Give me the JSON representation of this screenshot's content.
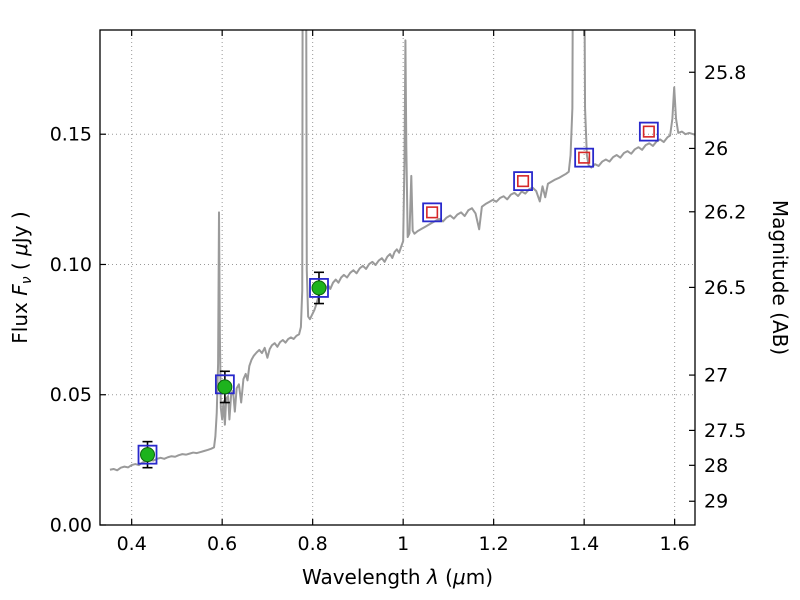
{
  "chart_data": {
    "type": "line+scatter",
    "description": "Galaxy spectral energy distribution: model spectrum (gray line), observed photometry (green circles with error bars) and model photometry (open squares)",
    "xlabel": {
      "prefix": "Wavelength",
      "symbol": "λ",
      "unit": "(μm)"
    },
    "ylabel_left": {
      "prefix": "Flux",
      "symbol": "F",
      "subscript": "ν",
      "unit": "( μJy )"
    },
    "ylabel_right": "Magnitude (AB)",
    "xlim": [
      0.33,
      1.645
    ],
    "ylim_flux": [
      0.0,
      0.19
    ],
    "xticks": [
      0.4,
      0.6,
      0.8,
      1.0,
      1.2,
      1.4,
      1.6
    ],
    "xtick_labels": [
      "0.4",
      "0.6",
      "0.8",
      "1",
      "1.2",
      "1.4",
      "1.6"
    ],
    "yticks_flux": [
      0.0,
      0.05,
      0.1,
      0.15
    ],
    "ytick_flux_labels": [
      "0.00",
      "0.05",
      "0.10",
      "0.15"
    ],
    "yticks_mag": [
      25.8,
      26,
      26.2,
      26.5,
      27,
      27.5,
      28,
      29
    ],
    "ytick_mag_labels": [
      "25.8",
      "26",
      "26.2",
      "26.5",
      "27",
      "27.5",
      "28",
      "29"
    ],
    "mag_flux_zeropoint": 23.9,
    "grid": {
      "show": true,
      "style": "dotted"
    },
    "colors": {
      "spectrum": "#9a9a9a",
      "model_square": "#2929cc",
      "model_inner_square": "#d62728",
      "observed_circle": "#1db31d",
      "observed_circle_edge": "#0c660c",
      "error_bar": "#000000",
      "grid": "#999999",
      "axis": "#000000"
    },
    "series": {
      "observed_photometry": {
        "name": "observed photometry",
        "marker": "green filled circle with black error bars inside blue open square",
        "points": [
          {
            "wavelength": 0.435,
            "flux": 0.027,
            "flux_err": 0.005
          },
          {
            "wavelength": 0.606,
            "flux": 0.053,
            "flux_err": 0.006
          },
          {
            "wavelength": 0.814,
            "flux": 0.091,
            "flux_err": 0.006
          }
        ]
      },
      "model_photometry": {
        "name": "model photometry",
        "marker": "blue open square with red open inner square",
        "points": [
          {
            "wavelength": 0.435,
            "flux": 0.027
          },
          {
            "wavelength": 0.606,
            "flux": 0.054
          },
          {
            "wavelength": 0.814,
            "flux": 0.091
          },
          {
            "wavelength": 1.064,
            "flux": 0.12
          },
          {
            "wavelength": 1.265,
            "flux": 0.132
          },
          {
            "wavelength": 1.4,
            "flux": 0.141
          },
          {
            "wavelength": 1.543,
            "flux": 0.151
          }
        ]
      },
      "spectrum": {
        "name": "model spectrum",
        "points": [
          [
            0.352,
            0.0212
          ],
          [
            0.36,
            0.0215
          ],
          [
            0.368,
            0.021
          ],
          [
            0.376,
            0.022
          ],
          [
            0.384,
            0.0224
          ],
          [
            0.392,
            0.0221
          ],
          [
            0.4,
            0.023
          ],
          [
            0.408,
            0.0234
          ],
          [
            0.416,
            0.023
          ],
          [
            0.424,
            0.024
          ],
          [
            0.432,
            0.0245
          ],
          [
            0.44,
            0.025
          ],
          [
            0.448,
            0.0247
          ],
          [
            0.456,
            0.0254
          ],
          [
            0.464,
            0.0258
          ],
          [
            0.472,
            0.0254
          ],
          [
            0.48,
            0.026
          ],
          [
            0.488,
            0.0264
          ],
          [
            0.496,
            0.0262
          ],
          [
            0.504,
            0.0268
          ],
          [
            0.512,
            0.0272
          ],
          [
            0.52,
            0.027
          ],
          [
            0.528,
            0.0274
          ],
          [
            0.536,
            0.0278
          ],
          [
            0.544,
            0.0276
          ],
          [
            0.552,
            0.028
          ],
          [
            0.56,
            0.0284
          ],
          [
            0.568,
            0.0288
          ],
          [
            0.576,
            0.0293
          ],
          [
            0.582,
            0.0298
          ],
          [
            0.585,
            0.034
          ],
          [
            0.588,
            0.043
          ],
          [
            0.591,
            0.062
          ],
          [
            0.593,
            0.12
          ],
          [
            0.595,
            0.072
          ],
          [
            0.597,
            0.045
          ],
          [
            0.6,
            0.0405
          ],
          [
            0.603,
            0.0475
          ],
          [
            0.606,
            0.0385
          ],
          [
            0.609,
            0.0485
          ],
          [
            0.613,
            0.0495
          ],
          [
            0.616,
            0.0405
          ],
          [
            0.62,
            0.0505
          ],
          [
            0.624,
            0.0515
          ],
          [
            0.628,
            0.0435
          ],
          [
            0.632,
            0.0525
          ],
          [
            0.637,
            0.054
          ],
          [
            0.642,
            0.047
          ],
          [
            0.647,
            0.056
          ],
          [
            0.652,
            0.058
          ],
          [
            0.656,
            0.0555
          ],
          [
            0.66,
            0.061
          ],
          [
            0.665,
            0.0635
          ],
          [
            0.67,
            0.065
          ],
          [
            0.676,
            0.0662
          ],
          [
            0.682,
            0.0672
          ],
          [
            0.688,
            0.066
          ],
          [
            0.694,
            0.068
          ],
          [
            0.7,
            0.0642
          ],
          [
            0.705,
            0.0675
          ],
          [
            0.71,
            0.069
          ],
          [
            0.716,
            0.0698
          ],
          [
            0.722,
            0.0684
          ],
          [
            0.728,
            0.0702
          ],
          [
            0.734,
            0.071
          ],
          [
            0.74,
            0.07
          ],
          [
            0.746,
            0.0714
          ],
          [
            0.752,
            0.072
          ],
          [
            0.758,
            0.0714
          ],
          [
            0.764,
            0.0726
          ],
          [
            0.77,
            0.0732
          ],
          [
            0.774,
            0.076
          ],
          [
            0.777,
            0.09
          ],
          [
            0.7785,
            0.3
          ],
          [
            0.7845,
            0.3
          ],
          [
            0.787,
            0.098
          ],
          [
            0.79,
            0.08
          ],
          [
            0.794,
            0.079
          ],
          [
            0.799,
            0.0808
          ],
          [
            0.804,
            0.0826
          ],
          [
            0.809,
            0.0852
          ],
          [
            0.814,
            0.0886
          ],
          [
            0.819,
            0.0902
          ],
          [
            0.824,
            0.0893
          ],
          [
            0.829,
            0.0908
          ],
          [
            0.834,
            0.092
          ],
          [
            0.839,
            0.0906
          ],
          [
            0.845,
            0.093
          ],
          [
            0.851,
            0.0942
          ],
          [
            0.857,
            0.093
          ],
          [
            0.863,
            0.095
          ],
          [
            0.869,
            0.096
          ],
          [
            0.876,
            0.095
          ],
          [
            0.883,
            0.0968
          ],
          [
            0.89,
            0.0978
          ],
          [
            0.897,
            0.0966
          ],
          [
            0.904,
            0.0985
          ],
          [
            0.911,
            0.0995
          ],
          [
            0.918,
            0.0983
          ],
          [
            0.925,
            0.1002
          ],
          [
            0.932,
            0.101
          ],
          [
            0.939,
            0.0998
          ],
          [
            0.946,
            0.1015
          ],
          [
            0.953,
            0.1024
          ],
          [
            0.959,
            0.101
          ],
          [
            0.965,
            0.103
          ],
          [
            0.971,
            0.104
          ],
          [
            0.976,
            0.1025
          ],
          [
            0.981,
            0.1048
          ],
          [
            0.986,
            0.1058
          ],
          [
            0.991,
            0.1045
          ],
          [
            0.996,
            0.107
          ],
          [
            1.0,
            0.109
          ],
          [
            1.003,
            0.14
          ],
          [
            1.005,
            0.186
          ],
          [
            1.007,
            0.145
          ],
          [
            1.01,
            0.1105
          ],
          [
            1.014,
            0.112
          ],
          [
            1.018,
            0.134
          ],
          [
            1.021,
            0.113
          ],
          [
            1.025,
            0.1118
          ],
          [
            1.032,
            0.1128
          ],
          [
            1.04,
            0.1136
          ],
          [
            1.048,
            0.1144
          ],
          [
            1.056,
            0.1152
          ],
          [
            1.064,
            0.116
          ],
          [
            1.072,
            0.1168
          ],
          [
            1.08,
            0.1175
          ],
          [
            1.088,
            0.1165
          ],
          [
            1.096,
            0.118
          ],
          [
            1.104,
            0.1188
          ],
          [
            1.112,
            0.1176
          ],
          [
            1.12,
            0.1192
          ],
          [
            1.128,
            0.12
          ],
          [
            1.136,
            0.1186
          ],
          [
            1.144,
            0.1208
          ],
          [
            1.152,
            0.1216
          ],
          [
            1.16,
            0.1196
          ],
          [
            1.168,
            0.1135
          ],
          [
            1.174,
            0.1222
          ],
          [
            1.182,
            0.1232
          ],
          [
            1.19,
            0.124
          ],
          [
            1.198,
            0.1248
          ],
          [
            1.206,
            0.1241
          ],
          [
            1.214,
            0.1255
          ],
          [
            1.222,
            0.1262
          ],
          [
            1.23,
            0.125
          ],
          [
            1.238,
            0.1268
          ],
          [
            1.246,
            0.1275
          ],
          [
            1.254,
            0.1263
          ],
          [
            1.262,
            0.128
          ],
          [
            1.27,
            0.1272
          ],
          [
            1.278,
            0.1288
          ],
          [
            1.286,
            0.1295
          ],
          [
            1.294,
            0.1282
          ],
          [
            1.302,
            0.1242
          ],
          [
            1.308,
            0.13
          ],
          [
            1.314,
            0.1258
          ],
          [
            1.32,
            0.131
          ],
          [
            1.328,
            0.1318
          ],
          [
            1.336,
            0.1326
          ],
          [
            1.344,
            0.1332
          ],
          [
            1.352,
            0.134
          ],
          [
            1.36,
            0.1348
          ],
          [
            1.366,
            0.1356
          ],
          [
            1.37,
            0.142
          ],
          [
            1.374,
            0.16
          ],
          [
            1.377,
            0.3
          ],
          [
            1.398,
            0.3
          ],
          [
            1.402,
            0.16
          ],
          [
            1.406,
            0.142
          ],
          [
            1.41,
            0.138
          ],
          [
            1.416,
            0.1372
          ],
          [
            1.424,
            0.1385
          ],
          [
            1.432,
            0.1378
          ],
          [
            1.44,
            0.1395
          ],
          [
            1.448,
            0.1403
          ],
          [
            1.456,
            0.1395
          ],
          [
            1.464,
            0.1412
          ],
          [
            1.472,
            0.142
          ],
          [
            1.48,
            0.141
          ],
          [
            1.488,
            0.1428
          ],
          [
            1.496,
            0.1435
          ],
          [
            1.504,
            0.1425
          ],
          [
            1.512,
            0.1442
          ],
          [
            1.52,
            0.145
          ],
          [
            1.528,
            0.144
          ],
          [
            1.536,
            0.1458
          ],
          [
            1.544,
            0.1465
          ],
          [
            1.552,
            0.1455
          ],
          [
            1.56,
            0.1472
          ],
          [
            1.568,
            0.148
          ],
          [
            1.576,
            0.147
          ],
          [
            1.584,
            0.1488
          ],
          [
            1.59,
            0.1495
          ],
          [
            1.595,
            0.156
          ],
          [
            1.599,
            0.168
          ],
          [
            1.603,
            0.156
          ],
          [
            1.608,
            0.1505
          ],
          [
            1.616,
            0.151
          ],
          [
            1.624,
            0.15
          ],
          [
            1.632,
            0.1505
          ],
          [
            1.645,
            0.1498
          ]
        ]
      }
    }
  }
}
